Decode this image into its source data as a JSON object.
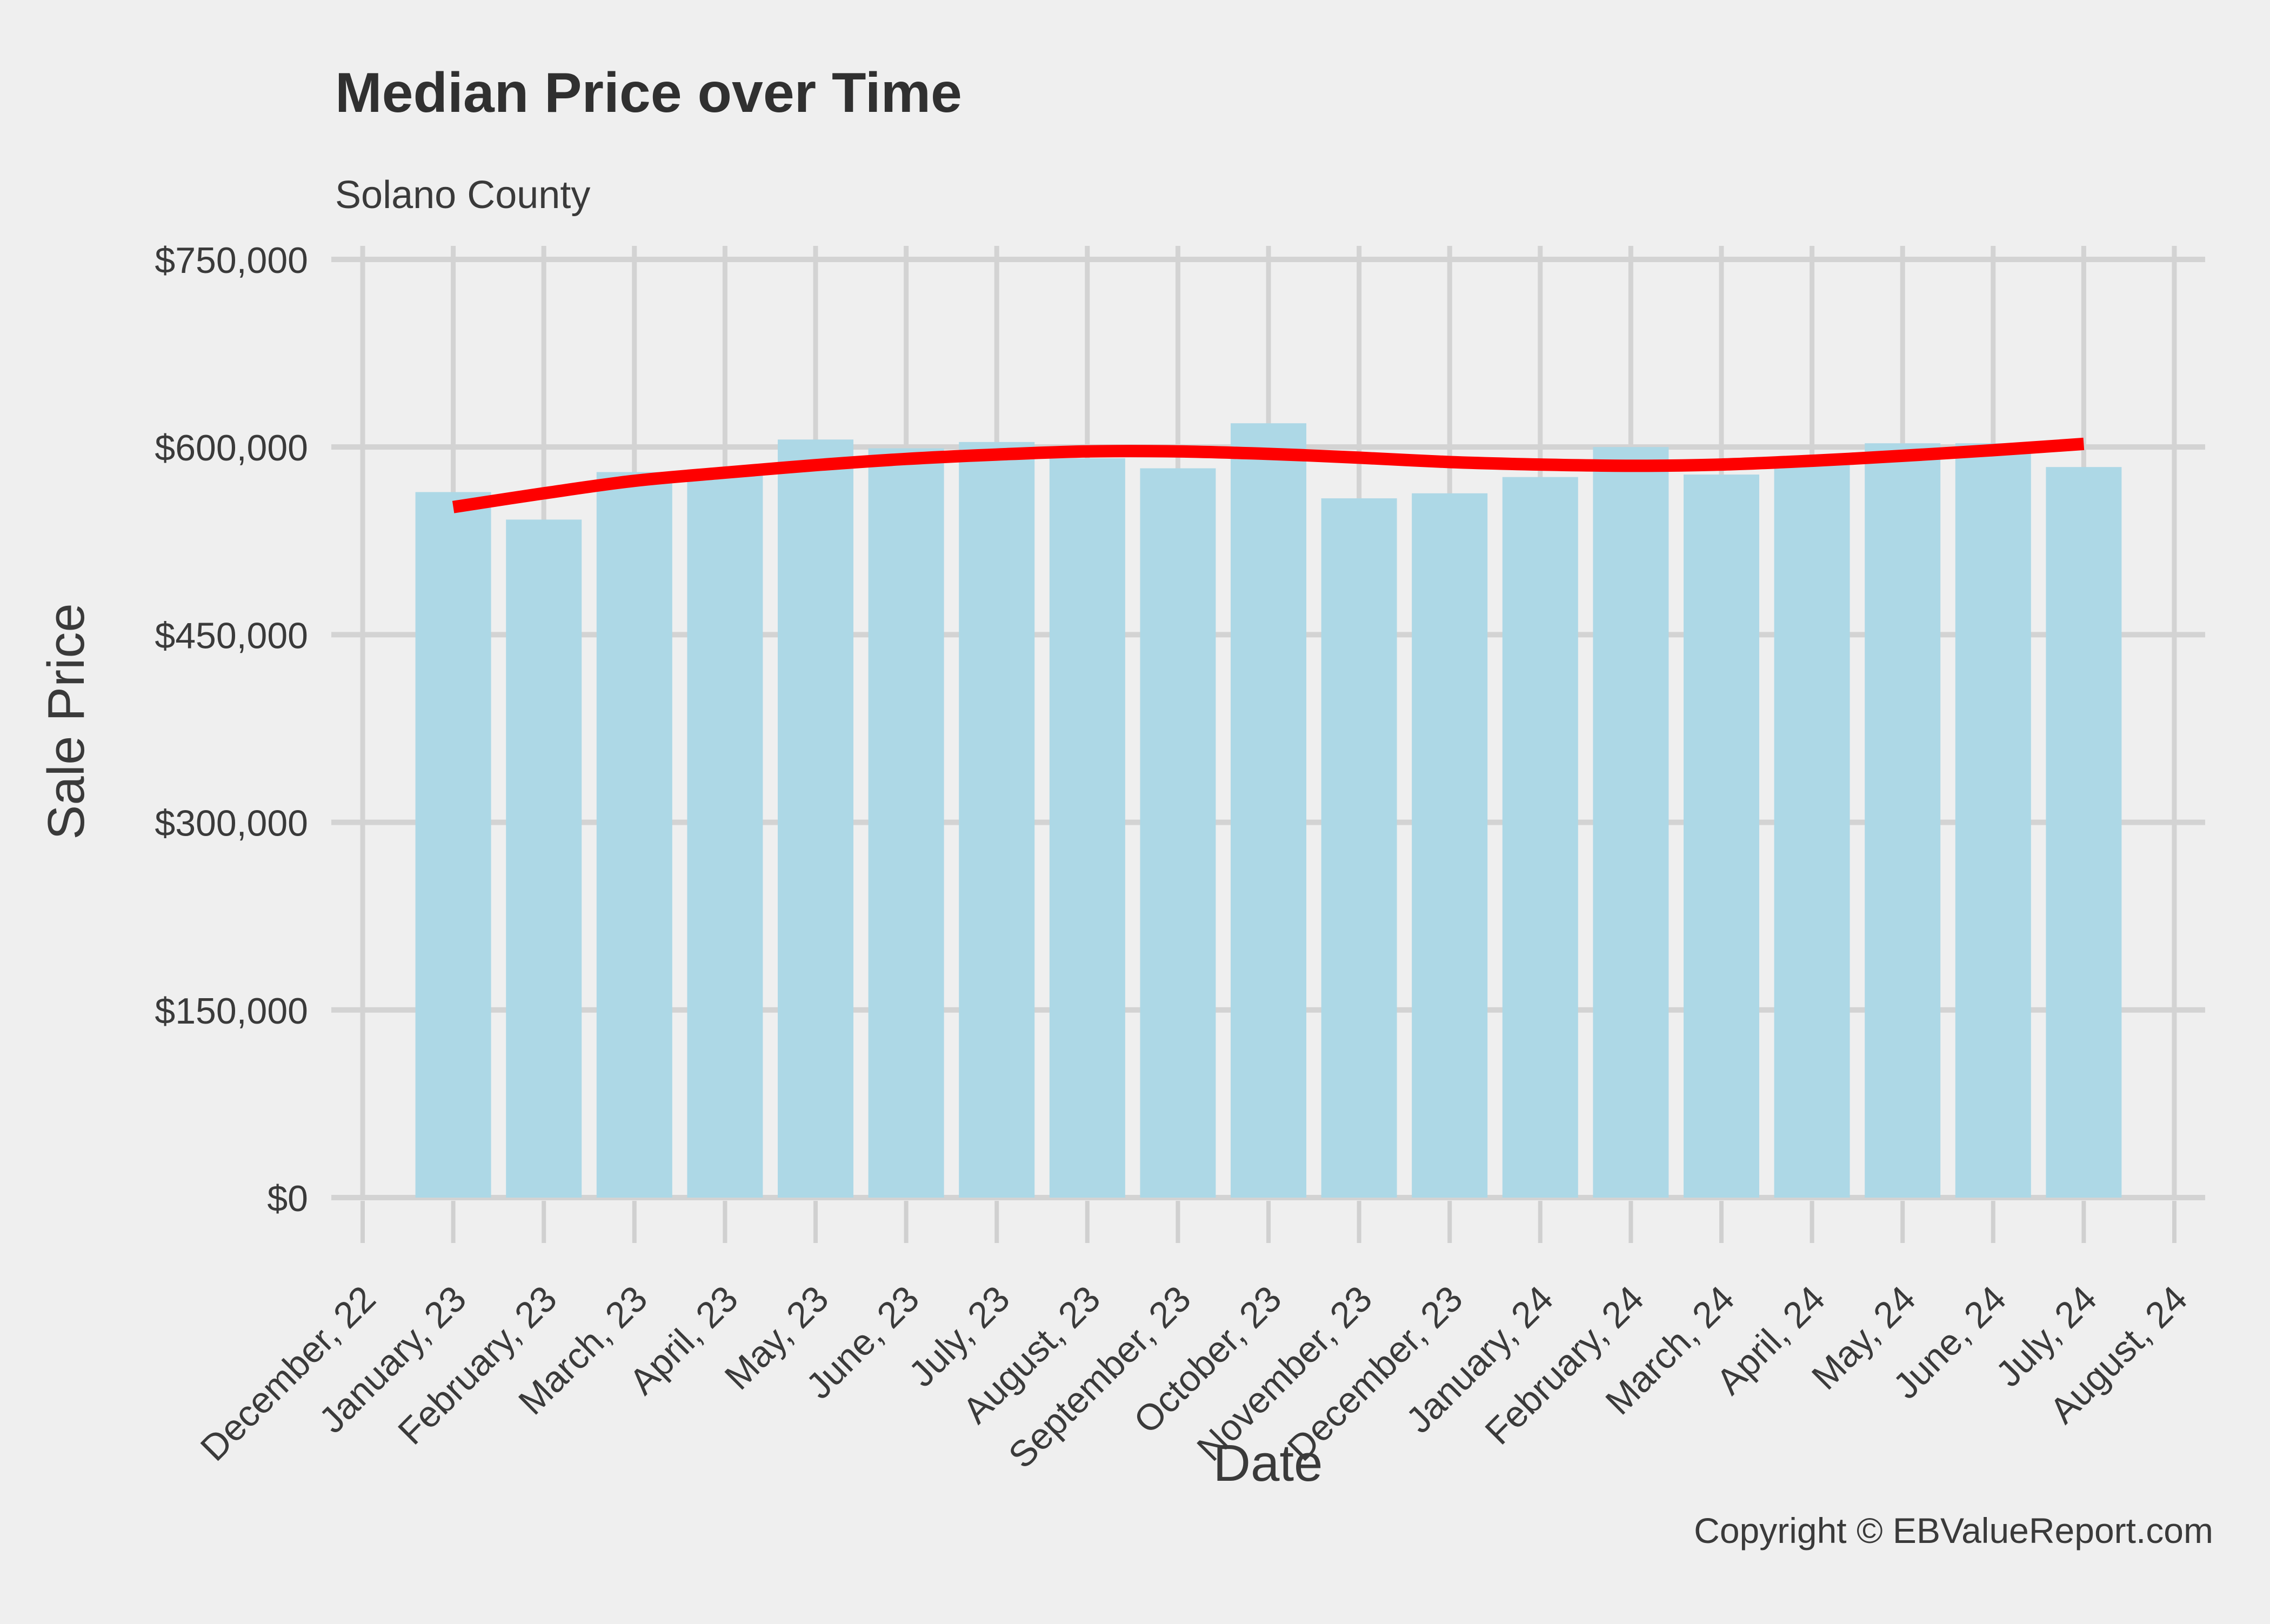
{
  "chart_data": {
    "type": "bar",
    "title": "Median Price over Time",
    "subtitle": "Solano County",
    "xlabel": "Date",
    "ylabel": "Sale Price",
    "copyright": "Copyright © EBValueReport.com",
    "legend": "none",
    "grid": true,
    "categories": [
      "December, 22",
      "January, 23",
      "February, 23",
      "March, 23",
      "April, 23",
      "May, 23",
      "June, 23",
      "July, 23",
      "August, 23",
      "September, 23",
      "October, 23",
      "November, 23",
      "December, 23",
      "January, 24",
      "February, 24",
      "March, 24",
      "April, 24",
      "May, 24",
      "June, 24",
      "July, 24",
      "August, 24"
    ],
    "values": [
      null,
      564000,
      542000,
      580000,
      580000,
      606000,
      599000,
      604000,
      591000,
      583000,
      619000,
      559000,
      563000,
      576000,
      600000,
      578000,
      589000,
      603000,
      603000,
      584000,
      null
    ],
    "trend_line": {
      "name": "smoothed trend",
      "start_category_index": 1,
      "end_category_index": 19,
      "values": [
        552000,
        563000,
        573000,
        579500,
        585500,
        590500,
        594000,
        596500,
        596500,
        594500,
        591500,
        588000,
        586000,
        585000,
        586000,
        589000,
        593000,
        597500,
        602500
      ]
    },
    "y_ticks": [
      {
        "label": "$0",
        "value": 0
      },
      {
        "label": "$150,000",
        "value": 150000
      },
      {
        "label": "$300,000",
        "value": 300000
      },
      {
        "label": "$450,000",
        "value": 450000
      },
      {
        "label": "$600,000",
        "value": 600000
      },
      {
        "label": "$750,000",
        "value": 750000
      }
    ],
    "ylim": [
      0,
      760000
    ],
    "colors": {
      "background": "#EFEFEF",
      "gridline": "#D3D3D3",
      "tick_mark": "#D0D0D0",
      "bar_fill": "#ADD8E6",
      "trend_line": "#FE0000",
      "text": "#3A3A3A"
    }
  }
}
